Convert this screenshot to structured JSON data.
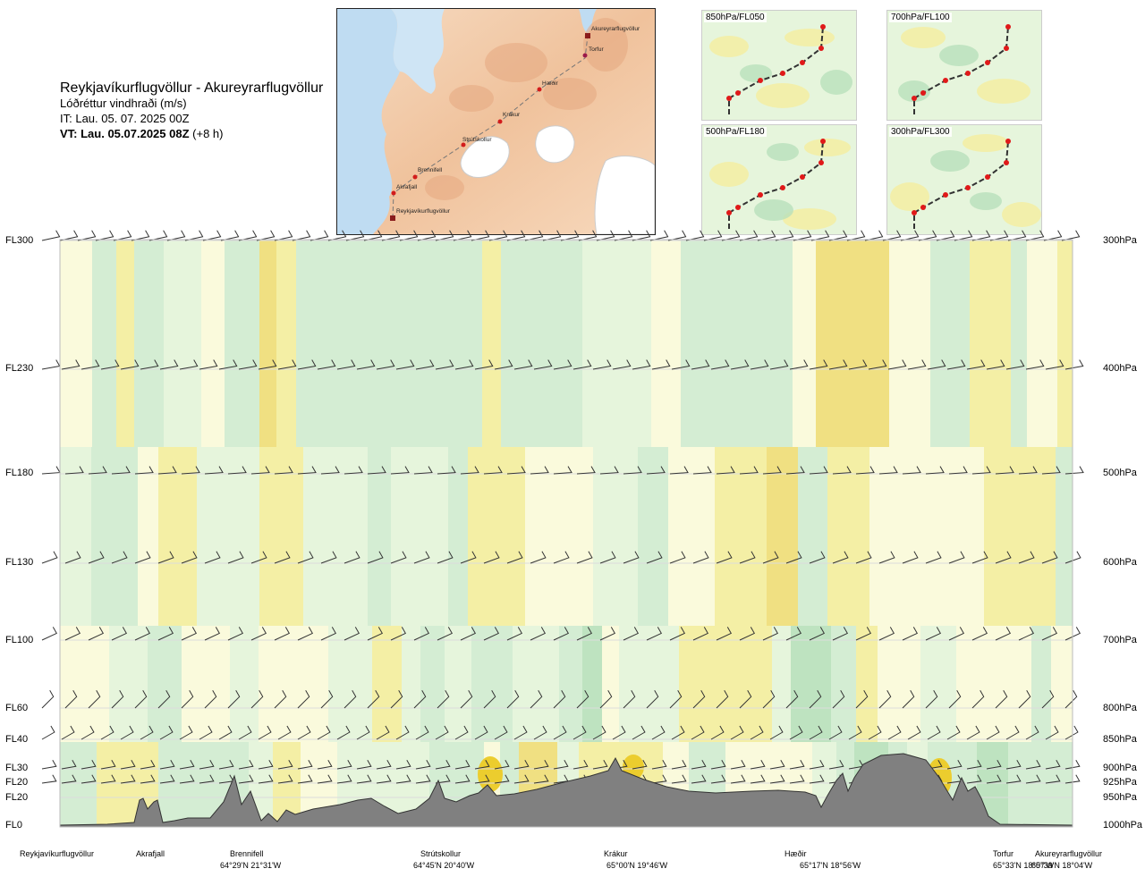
{
  "header": {
    "route_title": "Reykjavíkurflugvöllur - Akureyrarflugvöllur",
    "subtitle": "Lóðréttur vindhraði (m/s)",
    "issue_time": "IT: Lau. 05. 07. 2025 00Z",
    "valid_time_prefix": "VT: Lau. 05.07.2025 08Z",
    "valid_time_suffix": " (+8 h)"
  },
  "map": {
    "waypoints": [
      "Akureyrarflugvöllur",
      "Torfur",
      "Hæðir",
      "Krákur",
      "Strútskollur",
      "Brennifell",
      "Akrafjall",
      "Reykjavíkurflugvöllur"
    ]
  },
  "mini_maps": [
    {
      "label": "850hPa/FL050"
    },
    {
      "label": "700hPa/FL100"
    },
    {
      "label": "500hPa/FL180"
    },
    {
      "label": "300hPa/FL300"
    }
  ],
  "colors": {
    "terrain": "#808080",
    "green_light": "#e6f5dc",
    "green_mid": "#d1ecd1",
    "green_dark": "#b9e1bc",
    "yellow_light": "#fcfbdc",
    "yellow_mid": "#f5ee9f",
    "yellow_dark": "#f1de78",
    "yellow_strong": "#eccd2e",
    "barb": "#333333"
  },
  "chart_data": {
    "type": "heatmap",
    "variable": "Lóðréttur vindhraði (m/s)",
    "left_axis_labels": [
      "FL300",
      "FL230",
      "FL180",
      "FL130",
      "FL100",
      "FL60",
      "FL40",
      "FL30",
      "FL20",
      "FL20",
      "FL0"
    ],
    "right_axis_labels": [
      "300hPa",
      "400hPa",
      "500hPa",
      "600hPa",
      "700hPa",
      "800hPa",
      "850hPa",
      "900hPa",
      "925hPa",
      "950hPa",
      "1000hPa"
    ],
    "pressure_levels_hpa": [
      300,
      400,
      500,
      600,
      700,
      800,
      850,
      900,
      925,
      950,
      1000
    ],
    "route_points": [
      {
        "name": "Reykjavíkurflugvöllur",
        "coord": ""
      },
      {
        "name": "Akrafjall",
        "coord": ""
      },
      {
        "name": "Brennifell",
        "coord": "64°29'N 21°31'W"
      },
      {
        "name": "Strútskollur",
        "coord": "64°45'N 20°40'W"
      },
      {
        "name": "Krákur",
        "coord": "65°00'N 19°46'W"
      },
      {
        "name": "Hæðir",
        "coord": "65°17'N 18°56'W"
      },
      {
        "name": "Torfur",
        "coord": "65°33'N 18°07'W"
      },
      {
        "name": "Akureyrarflugvöllur",
        "coord": "65°39'N 18°04'W"
      }
    ]
  }
}
